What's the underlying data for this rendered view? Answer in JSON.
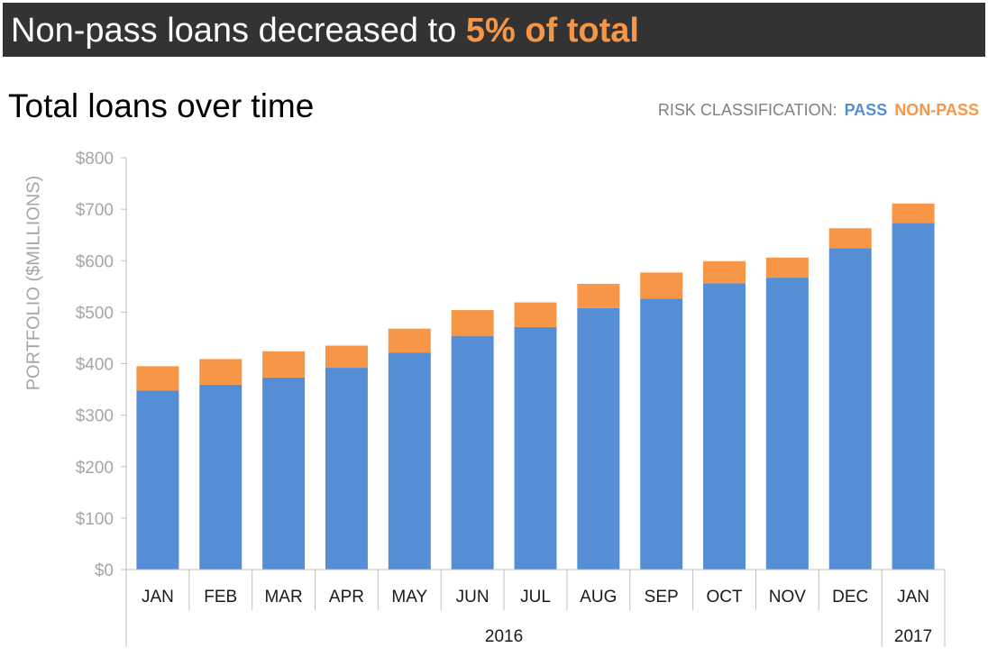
{
  "header": {
    "title_prefix": "Non-pass loans decreased to ",
    "title_highlight": "5% of total"
  },
  "colors": {
    "banner_bg": "#333333",
    "pass": "#558ed5",
    "non_pass": "#f79646",
    "highlight": "#f79646",
    "axis_text": "#808080"
  },
  "chart_data": {
    "type": "bar",
    "stacked": true,
    "title": "Total loans over time",
    "ylabel": "PORTFOLIO ($MILLIONS)",
    "xlabel": "",
    "ylim": [
      0,
      800
    ],
    "yticks": [
      0,
      100,
      200,
      300,
      400,
      500,
      600,
      700,
      800
    ],
    "ytick_labels": [
      "$0",
      "$100",
      "$200",
      "$300",
      "$400",
      "$500",
      "$600",
      "$700",
      "$800"
    ],
    "grid": false,
    "legend": {
      "title": "RISK CLASSIFICATION:",
      "placement": "top-right",
      "entries": [
        "PASS",
        "NON-PASS"
      ]
    },
    "categories": [
      "JAN",
      "FEB",
      "MAR",
      "APR",
      "MAY",
      "JUN",
      "JUL",
      "AUG",
      "SEP",
      "OCT",
      "NOV",
      "DEC",
      "JAN"
    ],
    "groups": [
      {
        "label": "2016",
        "count": 12
      },
      {
        "label": "2017",
        "count": 1
      }
    ],
    "series": [
      {
        "name": "PASS",
        "values": [
          348,
          359,
          373,
          392,
          421,
          454,
          471,
          508,
          526,
          556,
          567,
          624,
          673
        ]
      },
      {
        "name": "NON-PASS",
        "values": [
          47,
          50,
          51,
          43,
          47,
          50,
          48,
          47,
          51,
          43,
          39,
          39,
          38
        ]
      }
    ]
  }
}
